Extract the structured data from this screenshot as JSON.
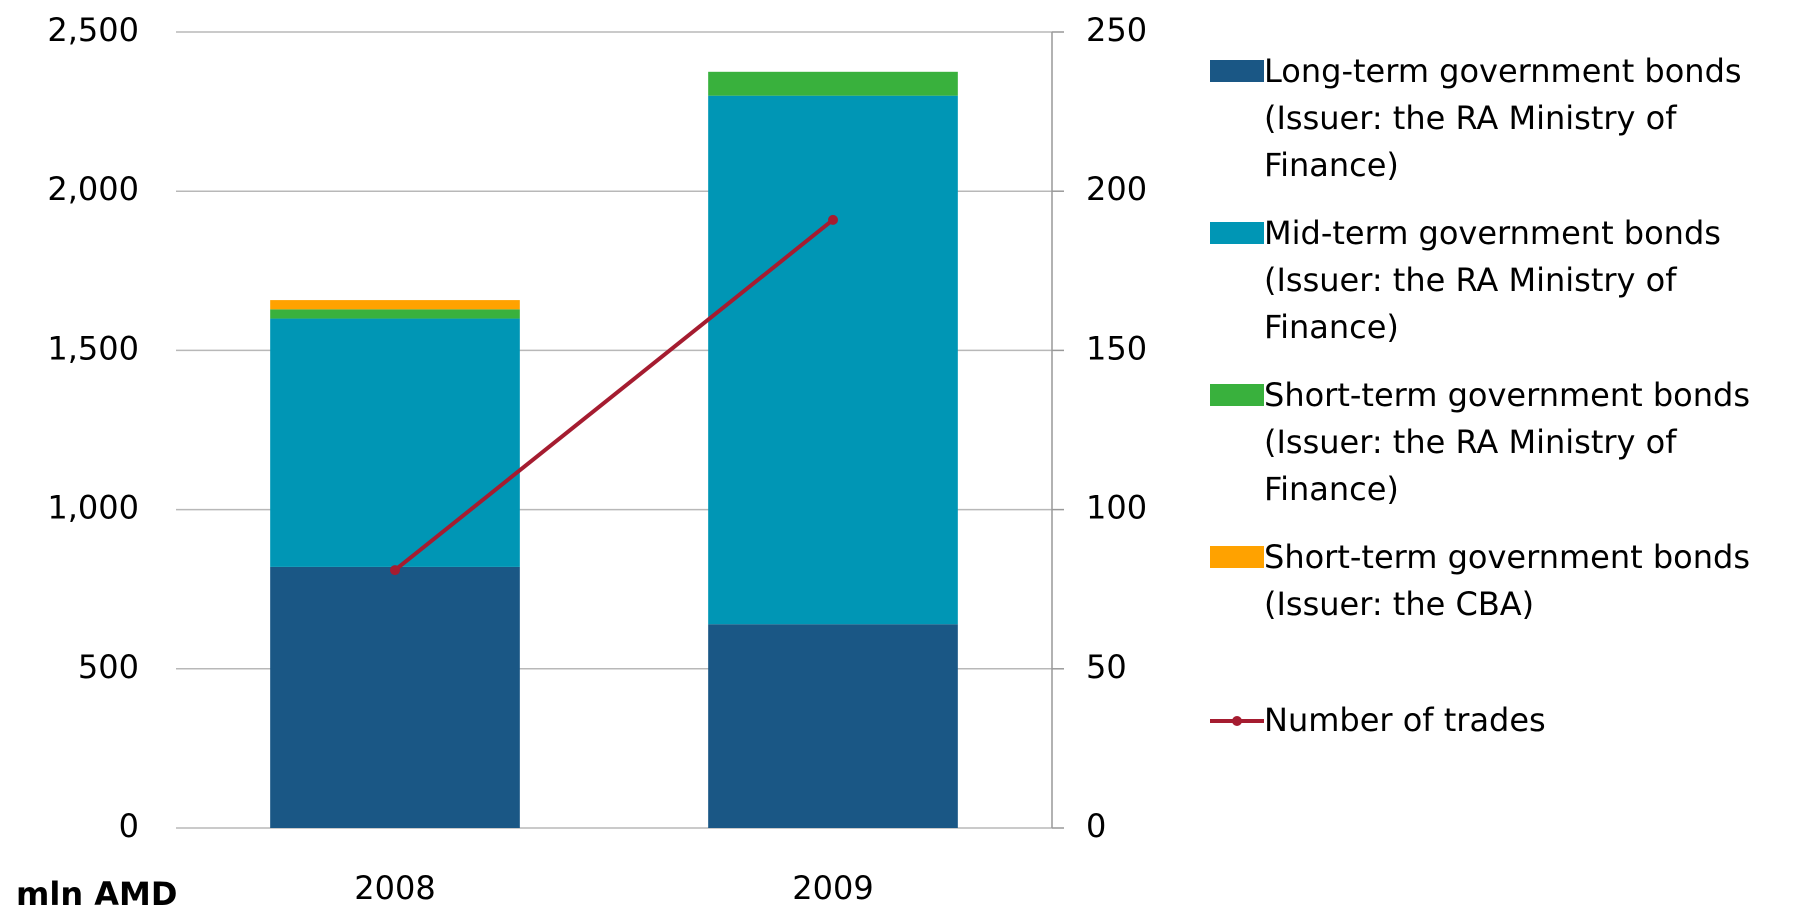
{
  "chart_data": {
    "type": "bar",
    "stacked": true,
    "y_axis_label": "mln AMD",
    "categories": [
      "2008",
      "2009"
    ],
    "series": [
      {
        "name": "Long-term government bonds (Issuer: the RA Ministry of Finance)",
        "color": "#1a5785",
        "values": [
          820,
          640
        ]
      },
      {
        "name": "Mid-term government bonds (Issuer: the RA Ministry of Finance)",
        "color": "#0096b5",
        "values": [
          780,
          1660
        ]
      },
      {
        "name": "Short-term government bonds (Issuer: the RA Ministry of Finance)",
        "color": "#39b13d",
        "values": [
          29,
          75
        ]
      },
      {
        "name": "Short-term government bonds (Issuer: the CBA)",
        "color": "#ffa200",
        "values": [
          29,
          0
        ]
      },
      {
        "name": "Number of trades",
        "color": "#a51c30",
        "type": "line",
        "axis": "y2",
        "values": [
          81,
          191
        ]
      }
    ],
    "ylim": [
      0,
      2500
    ],
    "yticks": [
      0,
      500,
      {
        "value": 1000,
        "label": "1,000"
      },
      {
        "value": 1500,
        "label": "1,500"
      },
      {
        "value": 2000,
        "label": "2,000"
      },
      {
        "value": 2500,
        "label": "2,500"
      }
    ],
    "y2lim": [
      0,
      250
    ],
    "y2ticks": [
      0,
      50,
      100,
      150,
      200,
      250
    ],
    "grid": true,
    "legend": "right"
  }
}
